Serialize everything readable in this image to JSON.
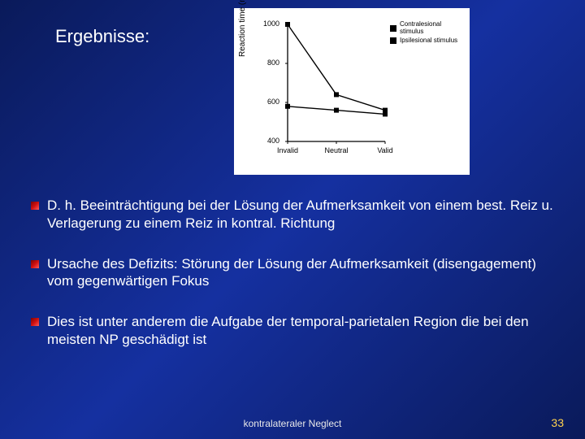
{
  "title": "Ergebnisse:",
  "bullets": [
    "D. h. Beeinträchtigung bei der Lösung der Aufmerksamkeit von einem best. Reiz u. Verlagerung zu einem Reiz in kontral. Richtung",
    "Ursache des Defizits: Störung der Lösung der Aufmerksamkeit (disengagement) vom gegenwärtigen Fokus",
    "Dies ist unter anderem die Aufgabe der temporal-parietalen Region die bei den meisten NP geschädigt ist"
  ],
  "footer": "kontralateraler Neglect",
  "page_number": "33",
  "chart": {
    "type": "line",
    "background_color": "#ffffff",
    "axis_color": "#000000",
    "line_color": "#000000",
    "marker_color": "#000000",
    "marker_size": 6,
    "line_width": 1.4,
    "ylabel": "Reaction time (msec)",
    "ylim": [
      400,
      1000
    ],
    "yticks": [
      400,
      600,
      800,
      1000
    ],
    "x_categories": [
      "Invalid",
      "Neutral",
      "Valid"
    ],
    "series": [
      {
        "name": "Contralesional stimulus",
        "values": [
          1000,
          640,
          560
        ]
      },
      {
        "name": "Ipsilesional stimulus",
        "values": [
          580,
          560,
          540
        ]
      }
    ],
    "legend_marker": "square",
    "font_color": "#000000",
    "tick_fontsize": 9,
    "label_fontsize": 10,
    "legend_fontsize": 8
  },
  "colors": {
    "slide_bg_from": "#0a1a5a",
    "slide_bg_mid": "#1530a0",
    "slide_bg_to": "#0a1a5a",
    "text": "#ffffff",
    "page_num": "#ffd24d",
    "bullet_from": "#7a0505",
    "bullet_to": "#ff5a5a"
  }
}
